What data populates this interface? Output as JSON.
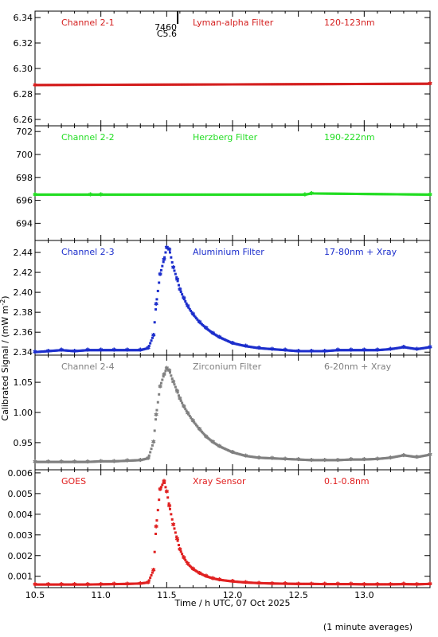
{
  "chart_data": {
    "type": "scatter",
    "xlabel": "Time / h UTC, 07 Oct 2025",
    "ylabel": "Calibrated Signal / (mW m",
    "ylabel_sup": "-2",
    "ylabel_close": ")",
    "footnote": "(1 minute averages)",
    "xlim": [
      10.5,
      13.5
    ],
    "xticks": [
      10.5,
      11.0,
      11.5,
      12.0,
      12.5,
      13.0
    ],
    "xtick_labels": [
      "10.5",
      "11.0",
      "11.5",
      "12.0",
      "12.5",
      "13.0"
    ],
    "marker": "*",
    "panels": [
      {
        "channel": "Channel 2-1",
        "filter": "Lyman-alpha Filter",
        "band": "120-123nm",
        "color": "#d42020",
        "ylim": [
          6.255,
          6.345
        ],
        "yticks": [
          6.26,
          6.28,
          6.3,
          6.32,
          6.34
        ],
        "ytick_labels": [
          "6.26",
          "6.28",
          "6.30",
          "6.32",
          "6.34"
        ],
        "annotation": {
          "label_top": "7460",
          "label_bottom": "C5.6",
          "x": 11.45
        },
        "series": [
          {
            "x": [
              10.5,
              13.5
            ],
            "y": [
              6.287,
              6.288
            ]
          }
        ]
      },
      {
        "channel": "Channel 2-2",
        "filter": "Herzberg Filter",
        "band": "190-222nm",
        "color": "#22dd22",
        "ylim": [
          692.5,
          702.5
        ],
        "yticks": [
          694,
          696,
          698,
          700,
          702
        ],
        "ytick_labels": [
          "694",
          "696",
          "698",
          "700",
          "702"
        ],
        "series": [
          {
            "x": [
              10.5,
              10.92,
              11.0,
              12.55,
              12.6,
              13.5
            ],
            "y": [
              696.5,
              696.5,
              696.5,
              696.5,
              696.6,
              696.5
            ]
          }
        ]
      },
      {
        "channel": "Channel 2-3",
        "filter": "Aluminium Filter",
        "band": "17-80nm + Xray",
        "color": "#1c2ecc",
        "ylim": [
          2.337,
          2.452
        ],
        "yticks": [
          2.34,
          2.36,
          2.38,
          2.4,
          2.42,
          2.44
        ],
        "ytick_labels": [
          "2.34",
          "2.36",
          "2.38",
          "2.40",
          "2.42",
          "2.44"
        ],
        "series": [
          {
            "x": [
              10.5,
              10.6,
              10.7,
              10.8,
              10.9,
              11.0,
              11.1,
              11.2,
              11.3,
              11.36,
              11.4,
              11.42,
              11.45,
              11.48,
              11.5,
              11.52,
              11.55,
              11.58,
              11.6,
              11.63,
              11.66,
              11.7,
              11.75,
              11.8,
              11.85,
              11.9,
              12.0,
              12.1,
              12.2,
              12.3,
              12.4,
              12.5,
              12.6,
              12.7,
              12.8,
              12.9,
              13.0,
              13.1,
              13.2,
              13.3,
              13.4,
              13.5
            ],
            "y": [
              2.34,
              2.341,
              2.342,
              2.341,
              2.342,
              2.342,
              2.342,
              2.342,
              2.342,
              2.344,
              2.357,
              2.388,
              2.418,
              2.433,
              2.445,
              2.443,
              2.425,
              2.413,
              2.403,
              2.394,
              2.386,
              2.378,
              2.37,
              2.364,
              2.359,
              2.355,
              2.349,
              2.346,
              2.344,
              2.343,
              2.342,
              2.341,
              2.341,
              2.341,
              2.342,
              2.342,
              2.342,
              2.342,
              2.343,
              2.345,
              2.343,
              2.345
            ]
          }
        ]
      },
      {
        "channel": "Channel 2-4",
        "filter": "Zirconium Filter",
        "band": "6-20nm + Xray",
        "color": "#808080",
        "ylim": [
          0.905,
          1.095
        ],
        "yticks": [
          0.95,
          1.0,
          1.05
        ],
        "ytick_labels": [
          "0.95",
          "1.00",
          "1.05"
        ],
        "series": [
          {
            "x": [
              10.5,
              10.6,
              10.7,
              10.8,
              10.9,
              11.0,
              11.1,
              11.2,
              11.3,
              11.36,
              11.4,
              11.42,
              11.45,
              11.48,
              11.5,
              11.52,
              11.55,
              11.58,
              11.6,
              11.63,
              11.66,
              11.7,
              11.75,
              11.8,
              11.85,
              11.9,
              12.0,
              12.1,
              12.2,
              12.3,
              12.4,
              12.5,
              12.6,
              12.7,
              12.8,
              12.9,
              13.0,
              13.1,
              13.2,
              13.3,
              13.4,
              13.5
            ],
            "y": [
              0.918,
              0.918,
              0.918,
              0.918,
              0.918,
              0.919,
              0.919,
              0.92,
              0.921,
              0.924,
              0.951,
              0.996,
              1.043,
              1.063,
              1.073,
              1.069,
              1.051,
              1.035,
              1.023,
              1.01,
              0.999,
              0.986,
              0.972,
              0.96,
              0.951,
              0.944,
              0.934,
              0.928,
              0.925,
              0.924,
              0.923,
              0.922,
              0.921,
              0.921,
              0.921,
              0.922,
              0.922,
              0.923,
              0.925,
              0.929,
              0.926,
              0.93
            ]
          }
        ]
      },
      {
        "channel": "GOES",
        "filter": "Xray Sensor",
        "band": "0.1-0.8nm",
        "color": "#e02020",
        "ylim": [
          0.00045,
          0.00615
        ],
        "yticks": [
          0.001,
          0.002,
          0.003,
          0.004,
          0.005,
          0.006
        ],
        "ytick_labels": [
          "0.001",
          "0.002",
          "0.003",
          "0.004",
          "0.005",
          "0.006"
        ],
        "series": [
          {
            "x": [
              10.5,
              10.6,
              10.7,
              10.8,
              10.9,
              11.0,
              11.1,
              11.2,
              11.3,
              11.36,
              11.4,
              11.42,
              11.45,
              11.48,
              11.5,
              11.52,
              11.55,
              11.58,
              11.6,
              11.63,
              11.66,
              11.7,
              11.75,
              11.8,
              11.85,
              11.9,
              12.0,
              12.1,
              12.2,
              12.3,
              12.4,
              12.5,
              12.6,
              12.7,
              12.8,
              12.9,
              13.0,
              13.1,
              13.2,
              13.3,
              13.4,
              13.5
            ],
            "y": [
              0.0006,
              0.0006,
              0.0006,
              0.0006,
              0.0006,
              0.00061,
              0.00062,
              0.00063,
              0.00065,
              0.0007,
              0.0013,
              0.0034,
              0.0052,
              0.0056,
              0.0051,
              0.0044,
              0.0035,
              0.0028,
              0.0023,
              0.0019,
              0.0016,
              0.00135,
              0.00115,
              0.001,
              0.0009,
              0.00083,
              0.00075,
              0.0007,
              0.00067,
              0.00065,
              0.00064,
              0.00063,
              0.00063,
              0.00062,
              0.00062,
              0.00062,
              0.00061,
              0.00061,
              0.00061,
              0.00062,
              0.00061,
              0.00063
            ]
          }
        ]
      }
    ]
  }
}
